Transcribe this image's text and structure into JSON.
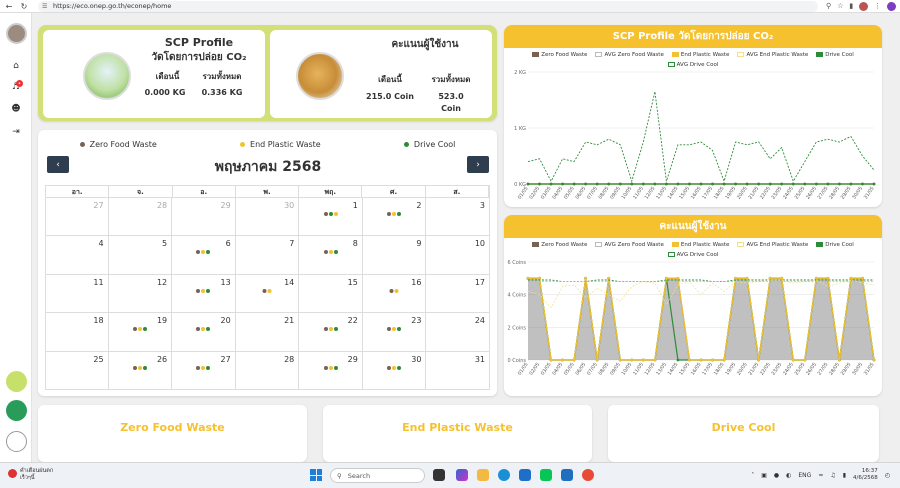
{
  "browser": {
    "url": "https://eco.onep.go.th/econep/home"
  },
  "profile": {
    "title": "SCP Profile",
    "subtitle": "วัดโดยการปล่อย CO₂",
    "month_label": "เดือนนี้",
    "total_label": "รวมทั้งหมด",
    "month_value": "0.000 KG",
    "total_value": "0.336 KG"
  },
  "points": {
    "title": "คะแนนผู้ใช้งาน",
    "month_label": "เดือนนี้",
    "total_label": "รวมทั้งหมด",
    "month_value": "215.0 Coin",
    "total_value_num": "523.0",
    "total_value_unit": "Coin"
  },
  "calendar": {
    "title": "พฤษภาคม 2568",
    "legend": [
      {
        "label": "Zero Food Waste",
        "color": "#7a6252"
      },
      {
        "label": "End Plastic Waste",
        "color": "#f2c232"
      },
      {
        "label": "Drive Cool",
        "color": "#2e8b3a"
      }
    ],
    "weekdays": [
      "อา.",
      "จ.",
      "อ.",
      "พ.",
      "พฤ.",
      "ศ.",
      "ส."
    ],
    "weeks": [
      [
        {
          "d": "27",
          "o": true
        },
        {
          "d": "28",
          "o": true
        },
        {
          "d": "29",
          "o": true
        },
        {
          "d": "30",
          "o": true
        },
        {
          "d": "1",
          "dots": "bgy"
        },
        {
          "d": "2",
          "dots": "byg"
        },
        {
          "d": "3"
        }
      ],
      [
        {
          "d": "4"
        },
        {
          "d": "5"
        },
        {
          "d": "6",
          "dots": "byg"
        },
        {
          "d": "7"
        },
        {
          "d": "8",
          "dots": "byg"
        },
        {
          "d": "9"
        },
        {
          "d": "10"
        }
      ],
      [
        {
          "d": "11"
        },
        {
          "d": "12"
        },
        {
          "d": "13",
          "dots": "byg"
        },
        {
          "d": "14",
          "dots": "by"
        },
        {
          "d": "15"
        },
        {
          "d": "16",
          "dots": "by"
        },
        {
          "d": "17"
        }
      ],
      [
        {
          "d": "18"
        },
        {
          "d": "19",
          "dots": "byg"
        },
        {
          "d": "20",
          "dots": "byg"
        },
        {
          "d": "21"
        },
        {
          "d": "22",
          "dots": "byg"
        },
        {
          "d": "23",
          "dots": "byg"
        },
        {
          "d": "24"
        }
      ],
      [
        {
          "d": "25"
        },
        {
          "d": "26",
          "dots": "byg"
        },
        {
          "d": "27",
          "dots": "byg"
        },
        {
          "d": "28"
        },
        {
          "d": "29",
          "dots": "byg"
        },
        {
          "d": "30",
          "dots": "byg"
        },
        {
          "d": "31"
        }
      ]
    ]
  },
  "chart_data": [
    {
      "type": "line",
      "title": "SCP Profile วัดโดยการปล่อย CO₂",
      "ylim": [
        0,
        2
      ],
      "y_ticks": [
        "0 KG",
        "1 KG",
        "2 KG"
      ],
      "x": [
        "01/05",
        "02/05",
        "03/05",
        "04/05",
        "05/05",
        "06/05",
        "07/05",
        "08/05",
        "09/05",
        "10/05",
        "11/05",
        "12/05",
        "13/05",
        "14/05",
        "15/05",
        "16/05",
        "17/05",
        "18/05",
        "19/05",
        "20/05",
        "21/05",
        "22/05",
        "23/05",
        "24/05",
        "25/05",
        "26/05",
        "27/05",
        "28/05",
        "29/05",
        "30/05",
        "31/05"
      ],
      "series": [
        {
          "name": "Zero Food Waste",
          "color": "#7a6252",
          "values": [
            0,
            0,
            0,
            0,
            0,
            0,
            0,
            0,
            0,
            0,
            0,
            0,
            0,
            0,
            0,
            0,
            0,
            0,
            0,
            0,
            0,
            0,
            0,
            0,
            0,
            0,
            0,
            0,
            0,
            0,
            0
          ]
        },
        {
          "name": "AVG Zero Food Waste",
          "color": "#bbbbbb",
          "values": [
            0,
            0,
            0,
            0,
            0,
            0,
            0,
            0,
            0,
            0,
            0,
            0,
            0,
            0,
            0,
            0,
            0,
            0,
            0,
            0,
            0,
            0,
            0,
            0,
            0,
            0,
            0,
            0,
            0,
            0,
            0
          ]
        },
        {
          "name": "End Plastic Waste",
          "color": "#f2c232",
          "values": [
            0,
            0,
            0,
            0,
            0,
            0,
            0,
            0,
            0,
            0,
            0,
            0,
            0,
            0,
            0,
            0,
            0,
            0,
            0,
            0,
            0,
            0,
            0,
            0,
            0,
            0,
            0,
            0,
            0,
            0,
            0
          ]
        },
        {
          "name": "AVG End Plastic Waste",
          "color": "#f7e08a",
          "values": [
            0,
            0,
            0,
            0,
            0,
            0,
            0,
            0,
            0,
            0,
            0,
            0,
            0,
            0,
            0,
            0,
            0,
            0,
            0,
            0,
            0,
            0,
            0,
            0,
            0,
            0,
            0,
            0,
            0,
            0,
            0
          ]
        },
        {
          "name": "Drive Cool",
          "color": "#2e8b3a",
          "values": [
            0,
            0,
            0,
            0,
            0,
            0,
            0,
            0,
            0,
            0,
            0,
            0,
            0,
            0,
            0,
            0,
            0,
            0,
            0,
            0,
            0,
            0,
            0,
            0,
            0,
            0,
            0,
            0,
            0,
            0,
            0
          ]
        },
        {
          "name": "AVG Drive Cool",
          "color": "#2e8b3a",
          "dashed": true,
          "values": [
            0.4,
            0.45,
            0.05,
            0.45,
            0.4,
            0.75,
            0.7,
            0.8,
            0.7,
            0.05,
            0.75,
            1.65,
            0.05,
            0.7,
            0.7,
            0.75,
            0.6,
            0.05,
            0.75,
            0.7,
            0.75,
            0.45,
            0.65,
            0.05,
            0.4,
            0.75,
            0.8,
            0.75,
            0.85,
            0.5,
            0.25
          ]
        }
      ]
    },
    {
      "type": "area",
      "title": "คะแนนผู้ใช้งาน",
      "ylim": [
        0,
        6
      ],
      "y_ticks": [
        "0 Coins",
        "2 Coins",
        "4 Coins",
        "6 Coins"
      ],
      "x": [
        "01/05",
        "02/05",
        "03/05",
        "04/05",
        "05/05",
        "06/05",
        "07/05",
        "08/05",
        "09/05",
        "10/05",
        "11/05",
        "12/05",
        "13/05",
        "14/05",
        "15/05",
        "16/05",
        "17/05",
        "18/05",
        "19/05",
        "20/05",
        "21/05",
        "22/05",
        "23/05",
        "24/05",
        "25/05",
        "26/05",
        "27/05",
        "28/05",
        "29/05",
        "30/05",
        "31/05"
      ],
      "series": [
        {
          "name": "Zero Food Waste",
          "color": "#7a6252",
          "values": [
            5,
            5,
            0,
            0,
            0,
            5,
            0,
            5,
            0,
            0,
            0,
            0,
            5,
            5,
            0,
            0,
            0,
            0,
            5,
            5,
            0,
            5,
            5,
            0,
            0,
            5,
            5,
            0,
            5,
            5,
            0
          ]
        },
        {
          "name": "AVG Zero Food Waste",
          "color": "#bbbbbb",
          "values": [
            4.8,
            4.8,
            4.8,
            4.8,
            4.8,
            4.8,
            4.8,
            4.8,
            4.8,
            4.8,
            4.8,
            4.8,
            4.8,
            4.8,
            4.8,
            4.8,
            4.8,
            4.8,
            4.8,
            4.8,
            4.8,
            4.8,
            4.8,
            4.8,
            4.8,
            4.8,
            4.8,
            4.8,
            4.8,
            4.8,
            4.8
          ]
        },
        {
          "name": "End Plastic Waste",
          "color": "#f2c232",
          "values": [
            5,
            5,
            0,
            0,
            0,
            5,
            0,
            5,
            0,
            0,
            0,
            0,
            5,
            5,
            0,
            0,
            0,
            0,
            5,
            5,
            0,
            5,
            5,
            0,
            0,
            5,
            5,
            0,
            5,
            5,
            0
          ]
        },
        {
          "name": "AVG End Plastic Waste",
          "color": "#f0e08a",
          "values": [
            4.2,
            4.0,
            3.2,
            4.5,
            4.6,
            3.8,
            4.4,
            4.0,
            3.6,
            4.5,
            4.8,
            4.7,
            3.4,
            4.6,
            4.8,
            4.0,
            4.7,
            4.2,
            4.8,
            4.7,
            4.8,
            4.9,
            4.9,
            4.7,
            4.8,
            4.9,
            4.5,
            4.7,
            4.9,
            4.7,
            4.6
          ]
        },
        {
          "name": "Drive Cool",
          "color": "#2e8b3a",
          "values": [
            5,
            5,
            0,
            0,
            0,
            5,
            0,
            5,
            0,
            0,
            0,
            0,
            5,
            0,
            0,
            0,
            0,
            0,
            5,
            5,
            0,
            5,
            5,
            0,
            0,
            5,
            5,
            0,
            5,
            5,
            0
          ]
        },
        {
          "name": "AVG Drive Cool",
          "color": "#2e8b3a",
          "dashed": true,
          "values": [
            4.9,
            4.9,
            4.9,
            4.8,
            4.8,
            4.8,
            4.9,
            4.9,
            4.8,
            4.8,
            4.8,
            4.8,
            4.9,
            4.9,
            4.9,
            4.9,
            4.8,
            4.8,
            4.9,
            4.9,
            4.9,
            4.9,
            4.9,
            4.9,
            4.9,
            4.9,
            4.9,
            4.9,
            4.9,
            4.9,
            4.9
          ]
        }
      ]
    }
  ],
  "categories": [
    "Zero Food Waste",
    "End Plastic Waste",
    "Drive Cool"
  ],
  "taskbar": {
    "weather_line1": "คำเตือนฝนตก",
    "weather_line2": "เร็วๆนี้",
    "search": "Search",
    "lang": "ENG",
    "time": "16:37",
    "date": "4/6/2568"
  }
}
